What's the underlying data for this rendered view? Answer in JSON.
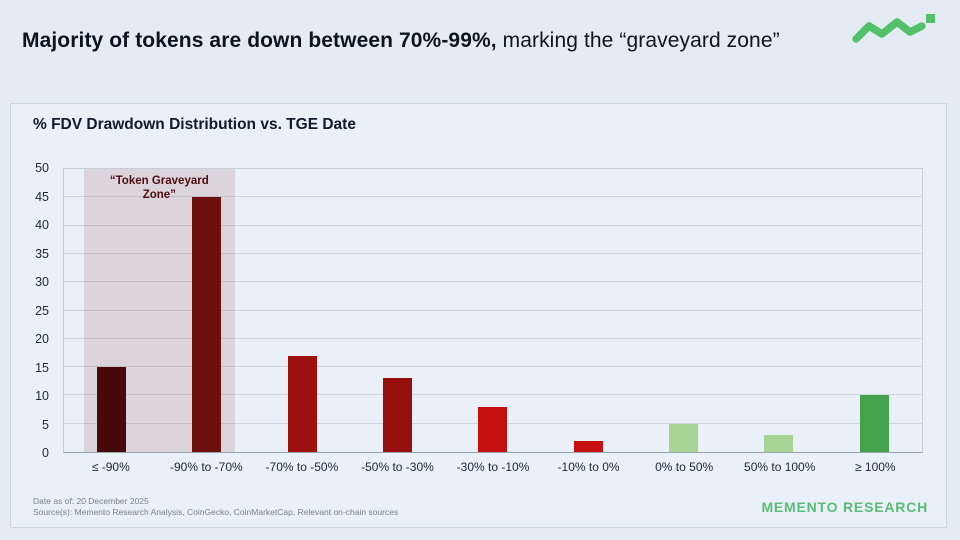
{
  "header": {
    "title_bold": "Majority of tokens are down between 70%-99%,",
    "title_rest": " marking the “graveyard zone”"
  },
  "logo": {
    "color": "#53c06a"
  },
  "chart_data": {
    "type": "bar",
    "title": "% FDV Drawdown Distribution vs. TGE Date",
    "categories": [
      "≤ -90%",
      "-90% to -70%",
      "-70% to -50%",
      "-50% to -30%",
      "-30% to -10%",
      "-10% to 0%",
      "0% to 50%",
      "50% to 100%",
      "≥ 100%"
    ],
    "values": [
      15,
      45,
      17,
      13,
      8,
      2,
      5,
      3,
      10
    ],
    "bar_colors": [
      "#470909",
      "#6e100f",
      "#9e100f",
      "#960f0e",
      "#c41110",
      "#c61110",
      "#a6d595",
      "#a6d595",
      "#43a24b"
    ],
    "xlabel": "",
    "ylabel": "",
    "ylim": [
      0,
      50
    ],
    "ytick_step": 5,
    "grid": true,
    "legend": "none",
    "annotation": {
      "line1": "“Token Graveyard",
      "line2": "Zone”",
      "text": "“Token Graveyard Zone”",
      "zone_left_pct": 2.33,
      "zone_width_pct": 17.56,
      "zone_color": "rgba(148,52,63,0.15)",
      "label_color": "#4e0d12"
    }
  },
  "footer": {
    "date_line": "Date as of: 20 December 2025",
    "source_line": "Source(s): Memento Research Analysis, CoinGecko, CoinMarketCap, Relevant on-chain sources",
    "brand": "MEMENTO RESEARCH",
    "brand_color": "#5abc77"
  }
}
